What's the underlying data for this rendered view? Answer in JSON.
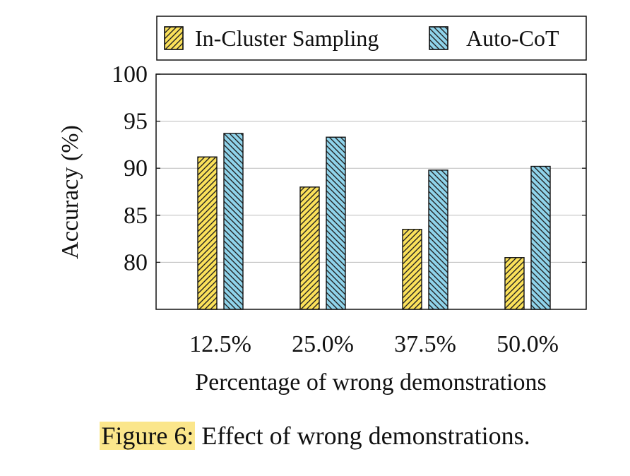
{
  "chart_data": {
    "type": "bar",
    "categories": [
      "12.5%",
      "25.0%",
      "37.5%",
      "50.0%"
    ],
    "series": [
      {
        "name": "In-Cluster Sampling",
        "values": [
          91.2,
          88.0,
          83.5,
          80.5
        ],
        "color": "#fbe15a",
        "hatch": "forward-diagonal"
      },
      {
        "name": "Auto-CoT",
        "values": [
          93.7,
          93.3,
          89.8,
          90.2
        ],
        "color": "#8fd3ea",
        "hatch": "backward-diagonal"
      }
    ],
    "ylabel": "Accuracy (%)",
    "xlabel": "Percentage of wrong demonstrations",
    "ylim": [
      75,
      100
    ],
    "yticks": [
      80,
      85,
      90,
      95,
      100
    ],
    "grid": "horizontal",
    "legend_position": "top"
  },
  "caption": {
    "label": "Figure 6:",
    "text": "Effect of wrong demonstrations."
  }
}
